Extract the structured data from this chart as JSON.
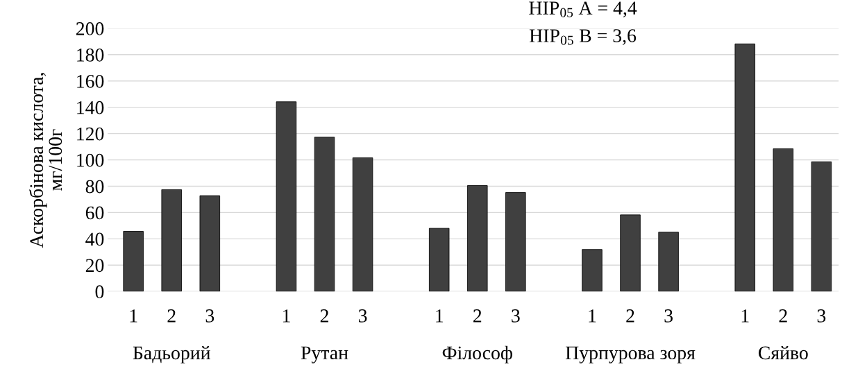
{
  "chart_data": {
    "type": "bar",
    "ylabel": "Аскорбінова кислота,\nмг/100г",
    "categories": [
      "1",
      "2",
      "3",
      null,
      "1",
      "2",
      "3",
      null,
      "1",
      "2",
      "3",
      null,
      "1",
      "2",
      "3",
      null,
      "1",
      "2",
      "3"
    ],
    "values": [
      45.7,
      77.4,
      72.8,
      null,
      144.2,
      117.3,
      101.6,
      null,
      48.0,
      80.5,
      75.2,
      null,
      31.9,
      58.2,
      45.1,
      null,
      188.2,
      108.5,
      98.6
    ],
    "color": "#404040",
    "ylim": [
      0,
      200
    ],
    "yticks": [
      0,
      20,
      40,
      60,
      80,
      100,
      120,
      140,
      160,
      180,
      200
    ],
    "grid": "y",
    "legend": false,
    "annotations": [
      "Бадьорий",
      "Рутан",
      "Філософ",
      "Пурпурова зоря",
      "Сяйво",
      "НІР$_{05}$ А = 4,4",
      "НІР$_{05}$ В = 3,6"
    ]
  }
}
